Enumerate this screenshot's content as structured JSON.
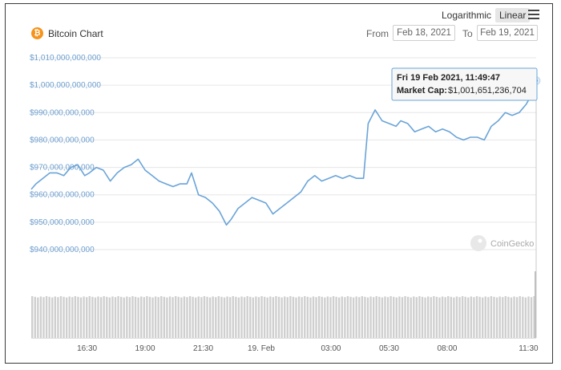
{
  "toolbar": {
    "scale_log_label": "Logarithmic",
    "scale_linear_label": "Linear",
    "active_scale": "Linear"
  },
  "header": {
    "coin_symbol": "₿",
    "title": "Bitcoin Chart",
    "from_label": "From",
    "from_date": "Feb 18, 2021",
    "to_label": "To",
    "to_date": "Feb 19, 2021"
  },
  "credit": "CoinGecko",
  "colors": {
    "line": "#6aa4d8",
    "volume": "#cfcfcf",
    "grid": "#e6e6e6",
    "axis_label": "#6d9fd0",
    "coin": "#f7931a"
  },
  "tooltip": {
    "title": "Fri 19 Feb 2021, 11:49:47",
    "label": "Market Cap:",
    "value": "$1,001,651,236,704"
  },
  "chart_data": {
    "type": "line",
    "title": "Bitcoin Chart",
    "y_ticks": [
      940000000000,
      950000000000,
      960000000000,
      970000000000,
      980000000000,
      990000000000,
      1000000000000,
      1010000000000
    ],
    "y_tick_labels": [
      "$940,000,000,000",
      "$950,000,000,000",
      "$960,000,000,000",
      "$970,000,000,000",
      "$980,000,000,000",
      "$990,000,000,000",
      "$1,000,000,000,000",
      "$1,010,000,000,000"
    ],
    "ylim": [
      940000000000,
      1010000000000
    ],
    "x_ticks": [
      16.5,
      19,
      21.5,
      24,
      27,
      29.5,
      32,
      35.5
    ],
    "x_tick_labels": [
      "16:30",
      "19:00",
      "21:30",
      "19. Feb",
      "03:00",
      "05:30",
      "08:00",
      "11:30"
    ],
    "xlim": [
      14.1,
      35.83
    ],
    "grid": true,
    "series": [
      {
        "name": "Market Cap",
        "x": [
          14.1,
          14.3,
          14.6,
          14.9,
          15.2,
          15.5,
          15.8,
          16.1,
          16.4,
          16.6,
          16.9,
          17.2,
          17.5,
          17.8,
          18.1,
          18.4,
          18.7,
          19.0,
          19.3,
          19.6,
          19.9,
          20.2,
          20.5,
          20.8,
          21.0,
          21.3,
          21.6,
          21.9,
          22.2,
          22.5,
          22.7,
          23.0,
          23.3,
          23.6,
          23.9,
          24.2,
          24.5,
          24.8,
          25.1,
          25.4,
          25.7,
          26.0,
          26.3,
          26.6,
          26.9,
          27.2,
          27.5,
          27.8,
          28.1,
          28.4,
          28.6,
          28.9,
          29.2,
          29.5,
          29.8,
          30.0,
          30.3,
          30.6,
          30.9,
          31.2,
          31.5,
          31.8,
          32.1,
          32.4,
          32.7,
          33.0,
          33.3,
          33.6,
          33.9,
          34.2,
          34.5,
          34.8,
          35.1,
          35.4,
          35.6,
          35.83
        ],
        "values": [
          962,
          964,
          966,
          968,
          968,
          967,
          970,
          971,
          967,
          968,
          970,
          969,
          965,
          968,
          970,
          971,
          973,
          969,
          967,
          965,
          964,
          963,
          964,
          964,
          968,
          960,
          959,
          957,
          954,
          949,
          951,
          955,
          957,
          959,
          958,
          957,
          953,
          955,
          957,
          959,
          961,
          965,
          967,
          965,
          966,
          967,
          966,
          967,
          966,
          966,
          986,
          991,
          987,
          986,
          985,
          987,
          986,
          983,
          984,
          985,
          983,
          984,
          983,
          981,
          980,
          981,
          981,
          980,
          985,
          987,
          990,
          989,
          990,
          993,
          996,
          1001.65
        ]
      }
    ],
    "volume_bars": 176
  }
}
